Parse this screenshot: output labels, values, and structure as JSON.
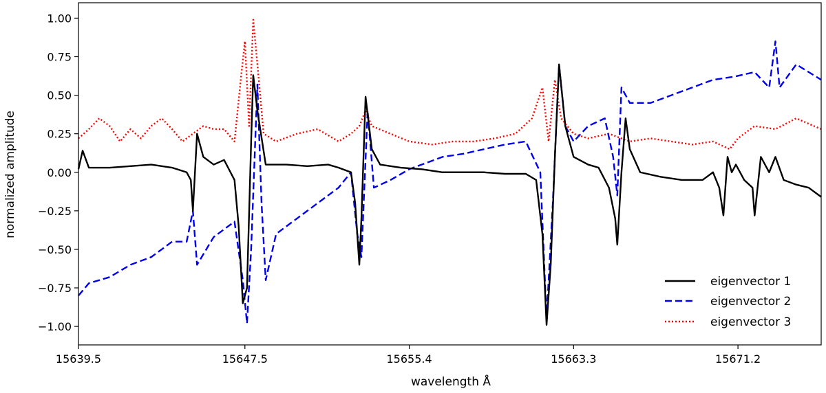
{
  "chart_data": {
    "type": "line",
    "xlabel": "wavelength Å",
    "ylabel": "normalized amplitude",
    "xlim": [
      15639.5,
      15675.2
    ],
    "ylim": [
      -1.12,
      1.1
    ],
    "x_ticks": [
      15639.5,
      15647.5,
      15655.4,
      15663.3,
      15671.2
    ],
    "x_tick_labels": [
      "15639.5",
      "15647.5",
      "15655.4",
      "15663.3",
      "15671.2"
    ],
    "y_ticks": [
      -1.0,
      -0.75,
      -0.5,
      -0.25,
      0.0,
      0.25,
      0.5,
      0.75,
      1.0
    ],
    "y_tick_labels": [
      "−1.00",
      "−0.75",
      "−0.50",
      "−0.25",
      "0.00",
      "0.25",
      "0.50",
      "0.75",
      "1.00"
    ],
    "grid": false,
    "legend_position": "bottom-right",
    "series": [
      {
        "name": "eigenvector 1",
        "color": "#000000",
        "style": "solid",
        "points": [
          [
            15639.5,
            0.02
          ],
          [
            15639.7,
            0.14
          ],
          [
            15640.0,
            0.03
          ],
          [
            15641.0,
            0.03
          ],
          [
            15642.0,
            0.04
          ],
          [
            15643.0,
            0.05
          ],
          [
            15644.0,
            0.03
          ],
          [
            15644.7,
            0.0
          ],
          [
            15644.9,
            -0.05
          ],
          [
            15645.0,
            -0.25
          ],
          [
            15645.2,
            0.25
          ],
          [
            15645.5,
            0.1
          ],
          [
            15646.0,
            0.05
          ],
          [
            15646.5,
            0.08
          ],
          [
            15647.0,
            -0.05
          ],
          [
            15647.2,
            -0.35
          ],
          [
            15647.4,
            -0.85
          ],
          [
            15647.6,
            -0.75
          ],
          [
            15647.8,
            0.2
          ],
          [
            15647.9,
            0.63
          ],
          [
            15648.1,
            0.4
          ],
          [
            15648.5,
            0.05
          ],
          [
            15649.5,
            0.05
          ],
          [
            15650.5,
            0.04
          ],
          [
            15651.5,
            0.05
          ],
          [
            15652.0,
            0.03
          ],
          [
            15652.6,
            0.0
          ],
          [
            15652.8,
            -0.2
          ],
          [
            15653.0,
            -0.6
          ],
          [
            15653.1,
            -0.3
          ],
          [
            15653.3,
            0.49
          ],
          [
            15653.6,
            0.15
          ],
          [
            15654.0,
            0.05
          ],
          [
            15655.0,
            0.03
          ],
          [
            15656.0,
            0.02
          ],
          [
            15657.0,
            0.0
          ],
          [
            15658.0,
            0.0
          ],
          [
            15659.0,
            0.0
          ],
          [
            15660.0,
            -0.01
          ],
          [
            15661.0,
            -0.01
          ],
          [
            15661.5,
            -0.05
          ],
          [
            15661.8,
            -0.4
          ],
          [
            15662.0,
            -0.99
          ],
          [
            15662.2,
            -0.6
          ],
          [
            15662.4,
            0.1
          ],
          [
            15662.6,
            0.7
          ],
          [
            15662.9,
            0.3
          ],
          [
            15663.3,
            0.1
          ],
          [
            15664.0,
            0.05
          ],
          [
            15664.5,
            0.03
          ],
          [
            15665.0,
            -0.1
          ],
          [
            15665.3,
            -0.3
          ],
          [
            15665.4,
            -0.47
          ],
          [
            15665.6,
            0.0
          ],
          [
            15665.8,
            0.35
          ],
          [
            15666.0,
            0.15
          ],
          [
            15666.5,
            0.0
          ],
          [
            15667.5,
            -0.03
          ],
          [
            15668.5,
            -0.05
          ],
          [
            15669.5,
            -0.05
          ],
          [
            15670.0,
            0.0
          ],
          [
            15670.3,
            -0.1
          ],
          [
            15670.5,
            -0.28
          ],
          [
            15670.7,
            0.1
          ],
          [
            15670.9,
            0.0
          ],
          [
            15671.1,
            0.05
          ],
          [
            15671.5,
            -0.05
          ],
          [
            15671.9,
            -0.1
          ],
          [
            15672.0,
            -0.28
          ],
          [
            15672.3,
            0.1
          ],
          [
            15672.7,
            0.0
          ],
          [
            15673.0,
            0.1
          ],
          [
            15673.4,
            -0.05
          ],
          [
            15674.0,
            -0.08
          ],
          [
            15674.6,
            -0.1
          ],
          [
            15675.2,
            -0.16
          ]
        ]
      },
      {
        "name": "eigenvector 2",
        "color": "#0000ee",
        "style": "dashed",
        "points": [
          [
            15639.5,
            -0.8
          ],
          [
            15640.0,
            -0.72
          ],
          [
            15641.0,
            -0.68
          ],
          [
            15642.0,
            -0.6
          ],
          [
            15643.0,
            -0.55
          ],
          [
            15644.0,
            -0.45
          ],
          [
            15644.7,
            -0.45
          ],
          [
            15645.0,
            -0.25
          ],
          [
            15645.2,
            -0.6
          ],
          [
            15646.0,
            -0.42
          ],
          [
            15647.0,
            -0.32
          ],
          [
            15647.4,
            -0.7
          ],
          [
            15647.6,
            -0.98
          ],
          [
            15647.8,
            -0.5
          ],
          [
            15648.1,
            0.57
          ],
          [
            15648.3,
            -0.2
          ],
          [
            15648.5,
            -0.7
          ],
          [
            15649.0,
            -0.4
          ],
          [
            15650.0,
            -0.3
          ],
          [
            15651.0,
            -0.2
          ],
          [
            15652.0,
            -0.1
          ],
          [
            15652.6,
            0.0
          ],
          [
            15652.9,
            -0.4
          ],
          [
            15653.1,
            -0.55
          ],
          [
            15653.4,
            0.4
          ],
          [
            15653.7,
            -0.1
          ],
          [
            15654.5,
            -0.05
          ],
          [
            15655.4,
            0.02
          ],
          [
            15656.0,
            0.05
          ],
          [
            15657.0,
            0.1
          ],
          [
            15658.0,
            0.12
          ],
          [
            15659.0,
            0.15
          ],
          [
            15660.0,
            0.18
          ],
          [
            15661.0,
            0.2
          ],
          [
            15661.7,
            0.0
          ],
          [
            15662.0,
            -0.95
          ],
          [
            15662.3,
            -0.2
          ],
          [
            15662.6,
            0.7
          ],
          [
            15662.9,
            0.3
          ],
          [
            15663.3,
            0.2
          ],
          [
            15664.0,
            0.3
          ],
          [
            15664.8,
            0.35
          ],
          [
            15665.2,
            0.1
          ],
          [
            15665.4,
            -0.15
          ],
          [
            15665.6,
            0.55
          ],
          [
            15666.0,
            0.45
          ],
          [
            15667.0,
            0.45
          ],
          [
            15668.0,
            0.5
          ],
          [
            15669.0,
            0.55
          ],
          [
            15670.0,
            0.6
          ],
          [
            15671.0,
            0.62
          ],
          [
            15672.0,
            0.65
          ],
          [
            15672.7,
            0.55
          ],
          [
            15673.0,
            0.85
          ],
          [
            15673.2,
            0.55
          ],
          [
            15674.0,
            0.7
          ],
          [
            15675.2,
            0.6
          ]
        ]
      },
      {
        "name": "eigenvector 3",
        "color": "#ff0000",
        "style": "dotted",
        "points": [
          [
            15639.5,
            0.22
          ],
          [
            15640.0,
            0.28
          ],
          [
            15640.5,
            0.35
          ],
          [
            15641.0,
            0.3
          ],
          [
            15641.5,
            0.2
          ],
          [
            15642.0,
            0.28
          ],
          [
            15642.5,
            0.22
          ],
          [
            15643.0,
            0.3
          ],
          [
            15643.5,
            0.35
          ],
          [
            15644.0,
            0.28
          ],
          [
            15644.5,
            0.2
          ],
          [
            15645.0,
            0.25
          ],
          [
            15645.5,
            0.3
          ],
          [
            15646.0,
            0.28
          ],
          [
            15646.5,
            0.28
          ],
          [
            15647.0,
            0.2
          ],
          [
            15647.3,
            0.6
          ],
          [
            15647.5,
            0.85
          ],
          [
            15647.7,
            0.3
          ],
          [
            15647.9,
            0.99
          ],
          [
            15648.1,
            0.7
          ],
          [
            15648.4,
            0.25
          ],
          [
            15649.0,
            0.2
          ],
          [
            15650.0,
            0.25
          ],
          [
            15651.0,
            0.28
          ],
          [
            15652.0,
            0.2
          ],
          [
            15652.6,
            0.25
          ],
          [
            15653.0,
            0.3
          ],
          [
            15653.3,
            0.4
          ],
          [
            15653.6,
            0.3
          ],
          [
            15654.5,
            0.25
          ],
          [
            15655.4,
            0.2
          ],
          [
            15656.5,
            0.18
          ],
          [
            15657.5,
            0.2
          ],
          [
            15658.5,
            0.2
          ],
          [
            15659.5,
            0.22
          ],
          [
            15660.5,
            0.25
          ],
          [
            15661.3,
            0.35
          ],
          [
            15661.8,
            0.55
          ],
          [
            15662.1,
            0.2
          ],
          [
            15662.4,
            0.6
          ],
          [
            15662.7,
            0.35
          ],
          [
            15663.3,
            0.25
          ],
          [
            15664.0,
            0.22
          ],
          [
            15665.0,
            0.25
          ],
          [
            15666.0,
            0.2
          ],
          [
            15667.0,
            0.22
          ],
          [
            15668.0,
            0.2
          ],
          [
            15669.0,
            0.18
          ],
          [
            15670.0,
            0.2
          ],
          [
            15670.8,
            0.15
          ],
          [
            15671.2,
            0.22
          ],
          [
            15672.0,
            0.3
          ],
          [
            15673.0,
            0.28
          ],
          [
            15674.0,
            0.35
          ],
          [
            15675.2,
            0.28
          ]
        ]
      }
    ]
  }
}
